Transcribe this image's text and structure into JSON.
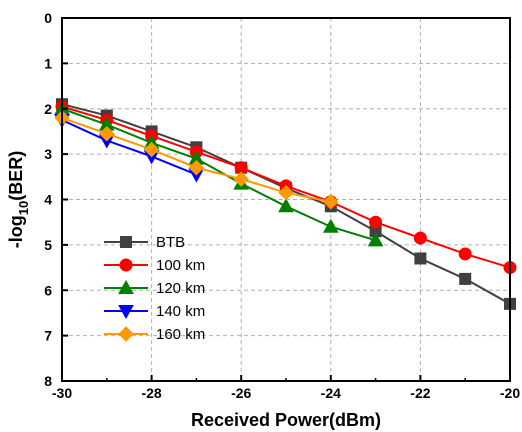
{
  "chart_data": {
    "type": "line",
    "xlabel": "Received Power(dBm)",
    "ylabel": "-log10(BER)",
    "ylabel_parts": {
      "pre": "-log",
      "sub": "10",
      "post": "(BER)"
    },
    "xlim": [
      -30,
      -20
    ],
    "ylim": [
      0,
      8
    ],
    "y_inverted": true,
    "xticks": [
      -30,
      -28,
      -26,
      -24,
      -22,
      -20
    ],
    "yticks": [
      0,
      1,
      2,
      3,
      4,
      5,
      6,
      7,
      8
    ],
    "grid": true,
    "legend_position": "lower-left",
    "series": [
      {
        "name": "BTB",
        "color": "#404040",
        "marker": "square",
        "x": [
          -30,
          -29,
          -28,
          -27,
          -26,
          -25,
          -24,
          -23,
          -22,
          -21,
          -20
        ],
        "y": [
          1.9,
          2.15,
          2.5,
          2.85,
          3.3,
          3.75,
          4.15,
          4.7,
          5.3,
          5.75,
          6.3
        ]
      },
      {
        "name": "100 km",
        "color": "#ff0000",
        "marker": "circle",
        "x": [
          -30,
          -29,
          -28,
          -27,
          -26,
          -25,
          -24,
          -23,
          -22,
          -21,
          -20
        ],
        "y": [
          1.95,
          2.25,
          2.6,
          2.95,
          3.3,
          3.7,
          4.05,
          4.5,
          4.85,
          5.2,
          5.5
        ]
      },
      {
        "name": "120 km",
        "color": "#008000",
        "marker": "triangle-up",
        "x": [
          -30,
          -29,
          -28,
          -27,
          -26,
          -25,
          -24,
          -23
        ],
        "y": [
          2.0,
          2.35,
          2.75,
          3.1,
          3.65,
          4.15,
          4.6,
          4.9
        ]
      },
      {
        "name": "140 km",
        "color": "#0000ff",
        "marker": "triangle-down",
        "x": [
          -30,
          -29,
          -28,
          -27
        ],
        "y": [
          2.25,
          2.7,
          3.05,
          3.45
        ]
      },
      {
        "name": "160 km",
        "color": "#ff9900",
        "marker": "diamond",
        "x": [
          -30,
          -29,
          -28,
          -27,
          -26,
          -25,
          -24
        ],
        "y": [
          2.2,
          2.55,
          2.9,
          3.3,
          3.55,
          3.85,
          4.05
        ]
      }
    ]
  }
}
